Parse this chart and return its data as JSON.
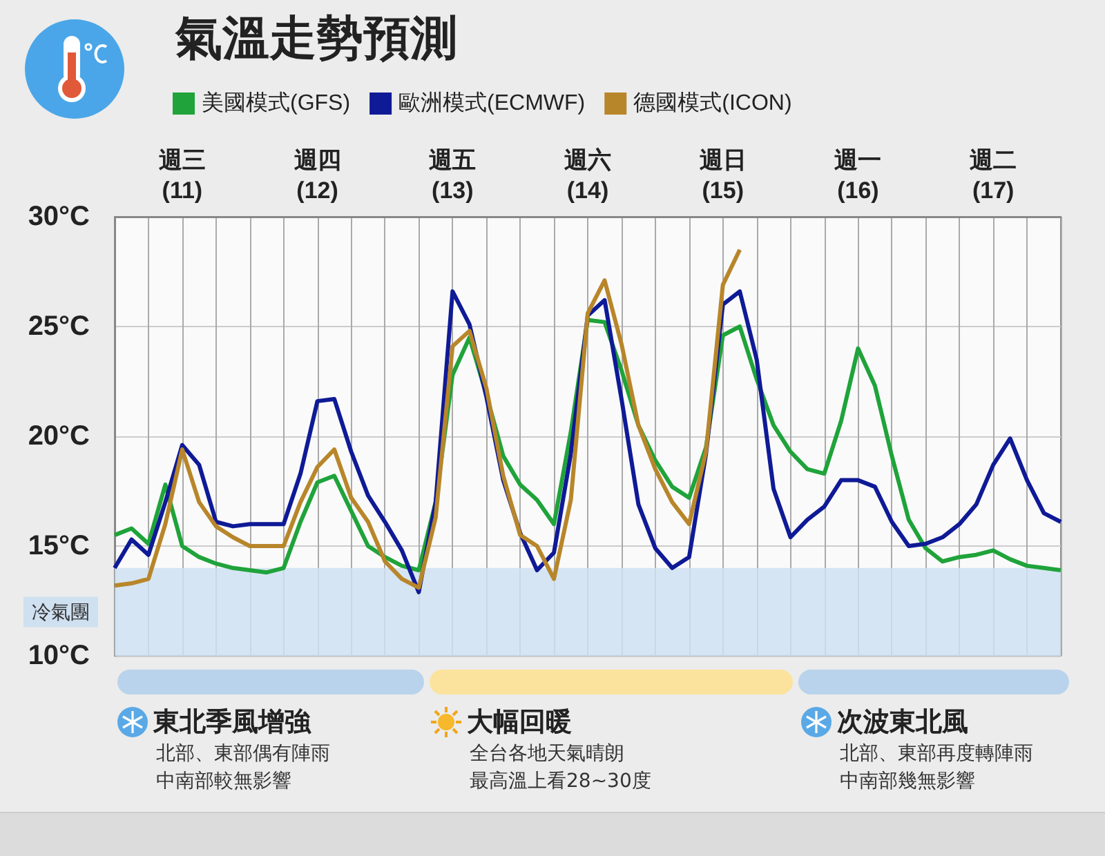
{
  "chart_data": {
    "type": "line",
    "title": "氣溫走勢預測",
    "categories": [
      null,
      null,
      null,
      null,
      "週三\n(11)",
      null,
      null,
      null,
      null,
      null,
      null,
      null,
      "週四\n(12)",
      null,
      null,
      null,
      null,
      null,
      null,
      null,
      "週五\n(13)",
      null,
      null,
      null,
      null,
      null,
      null,
      null,
      "週六\n(14)",
      null,
      null,
      null,
      null,
      null,
      null,
      null,
      "週日\n(15)",
      null,
      null,
      null,
      null,
      null,
      null,
      null,
      "週一\n(16)",
      null,
      null,
      null,
      null,
      null,
      null,
      null,
      "週二\n(17)",
      null,
      null,
      null,
      null
    ],
    "ylim": [
      10,
      30
    ],
    "yticks": [
      {
        "value": 10,
        "label": "10°C"
      },
      {
        "value": 15,
        "label": "15°C"
      },
      {
        "value": 20,
        "label": "20°C"
      },
      {
        "value": 25,
        "label": "25°C"
      },
      {
        "value": 30,
        "label": "30°C"
      }
    ],
    "grid": true,
    "legend": "top",
    "marker": "none",
    "line_style": "solid",
    "bands": [
      {
        "axis": "y",
        "from": 10,
        "to": 14,
        "label": "冷氣團",
        "color": "#cfe0f1"
      }
    ],
    "series": [
      {
        "name": "美國模式(GFS)",
        "color": "#1fa33a",
        "values": [
          15.5,
          15.8,
          15.1,
          17.8,
          15.0,
          14.5,
          14.2,
          14.0,
          13.9,
          13.8,
          14.0,
          16.1,
          17.9,
          18.2,
          16.6,
          15.0,
          14.5,
          14.1,
          13.9,
          17.0,
          22.8,
          24.5,
          21.9,
          19.1,
          17.8,
          17.1,
          16.0,
          20.2,
          25.3,
          25.2,
          23.0,
          20.5,
          18.9,
          17.7,
          17.2,
          19.5,
          24.6,
          25.0,
          22.6,
          20.5,
          19.3,
          18.5,
          18.3,
          20.7,
          24.0,
          22.3,
          19.1,
          16.2,
          14.9,
          14.3,
          14.5,
          14.6,
          14.8,
          14.4,
          14.1,
          14.0,
          13.9
        ]
      },
      {
        "name": "歐洲模式(ECMWF)",
        "color": "#0f1a96",
        "values": [
          14.0,
          15.3,
          14.6,
          17.0,
          19.6,
          18.7,
          16.1,
          15.9,
          16.0,
          16.0,
          16.0,
          18.3,
          21.6,
          21.7,
          19.3,
          17.3,
          16.1,
          14.8,
          12.9,
          17.0,
          26.6,
          25.1,
          21.8,
          18.0,
          15.6,
          13.9,
          14.7,
          19.2,
          25.5,
          26.2,
          21.7,
          16.9,
          14.9,
          14.0,
          14.5,
          19.2,
          26.0,
          26.6,
          23.5,
          17.6,
          15.4,
          16.2,
          16.8,
          18.0,
          18.0,
          17.7,
          16.1,
          15.0,
          15.1,
          15.4,
          16.0,
          16.9,
          18.7,
          19.9,
          18.0,
          16.5,
          16.1
        ]
      },
      {
        "name": "德國模式(ICON)",
        "color": "#b8862a",
        "values": [
          13.2,
          13.3,
          13.5,
          16.0,
          19.4,
          17.0,
          15.9,
          15.4,
          15.0,
          15.0,
          15.0,
          17.0,
          18.6,
          19.4,
          17.2,
          16.1,
          14.3,
          13.5,
          13.1,
          16.3,
          24.1,
          24.8,
          22.2,
          18.2,
          15.5,
          15.0,
          13.5,
          17.1,
          25.6,
          27.1,
          24.2,
          20.5,
          18.5,
          17.0,
          16.0,
          19.3,
          26.9,
          28.5,
          null,
          null,
          null,
          null,
          null,
          null,
          null,
          null,
          null,
          null,
          null,
          null,
          null,
          null,
          null,
          null,
          null,
          null,
          null
        ]
      }
    ],
    "annotations": [
      "東北季風增強",
      "北部、東部偶有陣雨",
      "中南部較無影響",
      "大幅回暖",
      "全台各地天氣晴朗",
      "最高溫上看28~30度",
      "次波東北風",
      "北部、東部再度轉陣雨",
      "中南部幾無影響"
    ]
  }
}
